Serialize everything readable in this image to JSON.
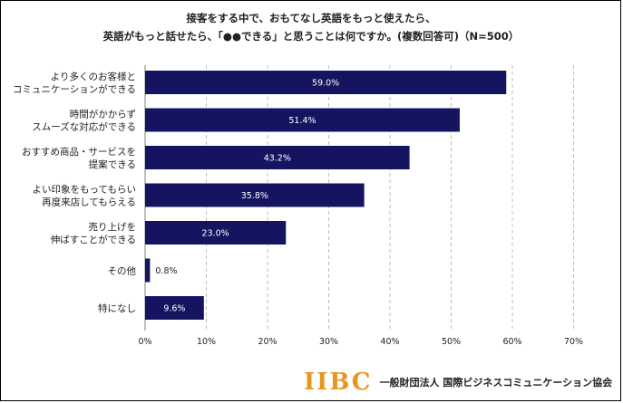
{
  "chart_data": {
    "type": "bar",
    "orientation": "horizontal",
    "title": [
      "接客をする中で、おもてなし英語をもっと使えたら、",
      "英語がもっと話せたら、「●●できる」と思うことは何ですか。(複数回答可)（N=500）"
    ],
    "categories": [
      [
        "より多くのお客様と",
        "コミュニケーションができる"
      ],
      [
        "時間がかからず",
        "スムーズな対応ができる"
      ],
      [
        "おすすめ商品・サービスを",
        "提案できる"
      ],
      [
        "よい印象をもってもらい",
        "再度来店してもらえる"
      ],
      [
        "売り上げを",
        "伸ばすことができる"
      ],
      [
        "その他"
      ],
      [
        "特になし"
      ]
    ],
    "values": [
      59.0,
      51.4,
      43.2,
      35.8,
      23.0,
      0.8,
      9.6
    ],
    "value_labels": [
      "59.0%",
      "51.4%",
      "43.2%",
      "35.8%",
      "23.0%",
      "0.8%",
      "9.6%"
    ],
    "xlim": [
      0,
      70
    ],
    "xticks": [
      "0%",
      "10%",
      "20%",
      "30%",
      "40%",
      "50%",
      "60%",
      "70%"
    ],
    "grid": true,
    "bar_color": "#141460"
  },
  "footer": {
    "logo_text": "IIBC",
    "org_name": "一般財団法人 国際ビジネスコミュニケーション協会"
  }
}
